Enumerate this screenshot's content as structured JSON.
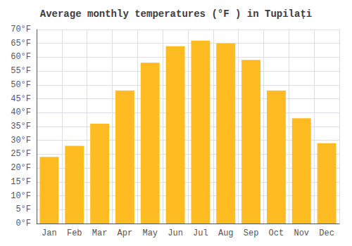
{
  "chart_data": {
    "type": "bar",
    "title": "Average monthly temperatures (°F ) in Tupilați",
    "categories": [
      "Jan",
      "Feb",
      "Mar",
      "Apr",
      "May",
      "Jun",
      "Jul",
      "Aug",
      "Sep",
      "Oct",
      "Nov",
      "Dec"
    ],
    "values": [
      24,
      28,
      36,
      48,
      58,
      64,
      66,
      65,
      59,
      48,
      38,
      29
    ],
    "color": "#FFBB22",
    "ylim": [
      0,
      70
    ],
    "yticks": [
      {
        "value": 0,
        "label": "0°F"
      },
      {
        "value": 5,
        "label": "5°F"
      },
      {
        "value": 10,
        "label": "10°F"
      },
      {
        "value": 15,
        "label": "15°F"
      },
      {
        "value": 20,
        "label": "20°F"
      },
      {
        "value": 25,
        "label": "25°F"
      },
      {
        "value": 30,
        "label": "30°F"
      },
      {
        "value": 35,
        "label": "35°F"
      },
      {
        "value": 40,
        "label": "40°F"
      },
      {
        "value": 45,
        "label": "45°F"
      },
      {
        "value": 50,
        "label": "50°F"
      },
      {
        "value": 55,
        "label": "55°F"
      },
      {
        "value": 60,
        "label": "60°F"
      },
      {
        "value": 65,
        "label": "65°F"
      },
      {
        "value": 70,
        "label": "70°F"
      }
    ],
    "grid": true
  }
}
